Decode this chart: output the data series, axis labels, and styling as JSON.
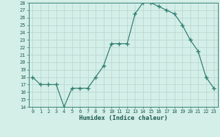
{
  "x": [
    0,
    1,
    2,
    3,
    4,
    5,
    6,
    7,
    8,
    9,
    10,
    11,
    12,
    13,
    14,
    15,
    16,
    17,
    18,
    19,
    20,
    21,
    22,
    23
  ],
  "y": [
    18,
    17,
    17,
    17,
    14,
    16.5,
    16.5,
    16.5,
    18,
    19.5,
    22.5,
    22.5,
    22.5,
    26.5,
    28,
    28,
    27.5,
    27,
    26.5,
    25,
    23,
    21.5,
    18,
    16.5
  ],
  "line_color": "#2e7d6e",
  "marker_color": "#2e7d6e",
  "bg_color": "#d4eee8",
  "grid_color": "#b8d8d0",
  "xlabel": "Humidex (Indice chaleur)",
  "ylim": [
    14,
    28
  ],
  "xlim": [
    -0.5,
    23.5
  ],
  "yticks": [
    14,
    15,
    16,
    17,
    18,
    19,
    20,
    21,
    22,
    23,
    24,
    25,
    26,
    27,
    28
  ],
  "xticks": [
    0,
    1,
    2,
    3,
    4,
    5,
    6,
    7,
    8,
    9,
    10,
    11,
    12,
    13,
    14,
    15,
    16,
    17,
    18,
    19,
    20,
    21,
    22,
    23
  ],
  "tick_color": "#2e7d6e",
  "label_color": "#1a5a50"
}
